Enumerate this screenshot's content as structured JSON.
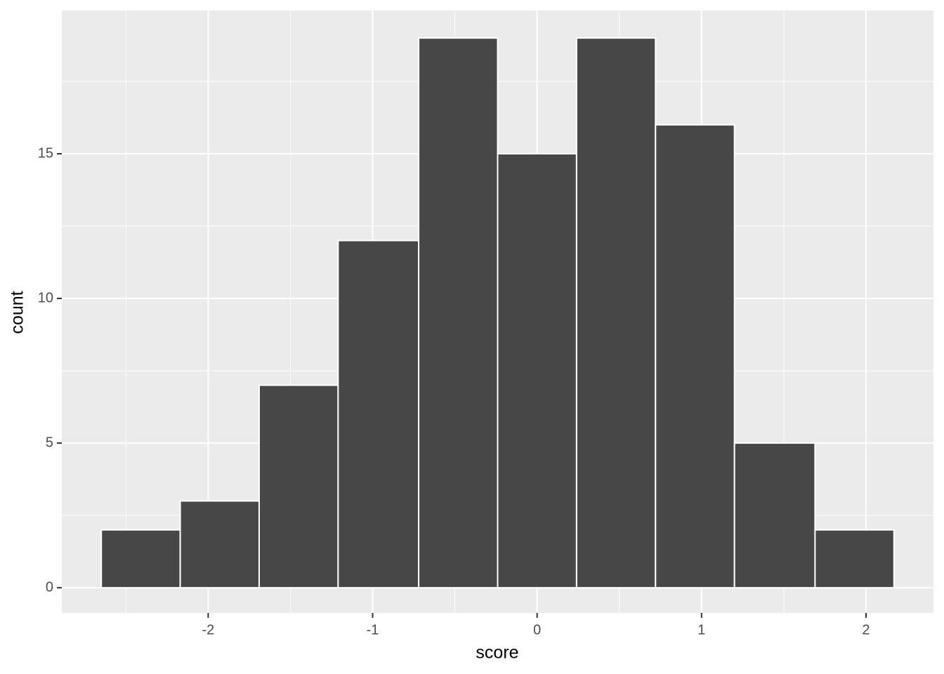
{
  "chart_data": {
    "type": "histogram",
    "x_label": "score",
    "y_label": "count",
    "bins": [
      -2.65,
      -2.17,
      -1.69,
      -1.21,
      -0.72,
      -0.24,
      0.24,
      0.72,
      1.2,
      1.69,
      2.17
    ],
    "values": [
      2,
      3,
      7,
      12,
      19,
      15,
      19,
      16,
      5,
      2
    ],
    "color": "#474747",
    "edge_color": "#ffffff",
    "xlim": [
      -2.89,
      2.41
    ],
    "ylim": [
      -0.87,
      19.95
    ],
    "xticks": [
      -2,
      -1,
      0,
      1,
      2
    ],
    "yticks": [
      0,
      5,
      10,
      15
    ],
    "xminor": [
      -2.5,
      -1.5,
      -0.5,
      0.5,
      1.5
    ],
    "yminor": [
      2.5,
      7.5,
      12.5,
      17.5
    ],
    "grid": true,
    "background": "#ebebeb"
  }
}
